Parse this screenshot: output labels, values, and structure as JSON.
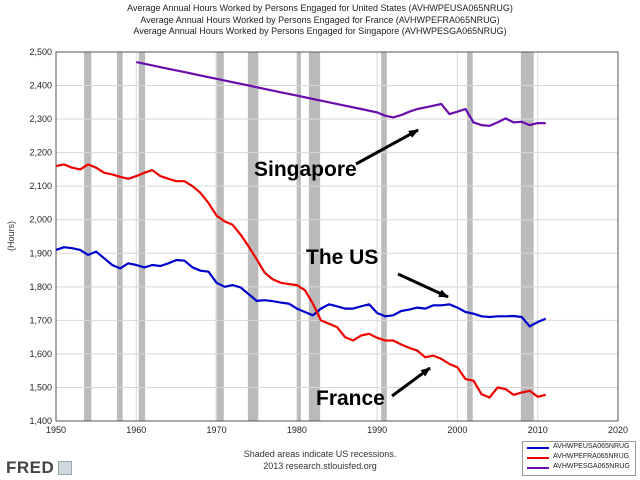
{
  "header": {
    "titles": [
      "Average Annual Hours Worked by Persons Engaged for United States (AVHWPEUSA065NRUG)",
      "Average Annual Hours Worked by Persons Engaged for France (AVHWPEFRA065NRUG)",
      "Average Annual Hours Worked by Persons Engaged for Singapore (AVHWPESGA065NRUG)"
    ]
  },
  "annotations": {
    "singapore": "Singapore",
    "us": "The US",
    "france": "France"
  },
  "footer": {
    "note": "Shaded areas indicate US recessions.",
    "source": "2013 research.stlouisfed.org",
    "brand": "FRED"
  },
  "colors": {
    "us": "#0000cc",
    "france": "#ee0000",
    "singapore": "#6a0dad",
    "recession": "#bbbbbb"
  },
  "chart_data": {
    "type": "line",
    "ylabel": "(Hours)",
    "xlim": [
      1950,
      2020
    ],
    "ylim": [
      1400,
      2500
    ],
    "x_ticks": [
      1950,
      1960,
      1970,
      1980,
      1990,
      2000,
      2010,
      2020
    ],
    "y_ticks": [
      "1,400",
      "1,500",
      "1,600",
      "1,700",
      "1,800",
      "1,900",
      "2,000",
      "2,100",
      "2,200",
      "2,300",
      "2,400",
      "2,500"
    ],
    "y_tick_values": [
      1400,
      1500,
      1600,
      1700,
      1800,
      1900,
      2000,
      2100,
      2200,
      2300,
      2400,
      2500
    ],
    "grid": true,
    "recessions": [
      [
        1953.5,
        1954.4
      ],
      [
        1957.6,
        1958.3
      ],
      [
        1960.3,
        1961.1
      ],
      [
        1969.9,
        1970.9
      ],
      [
        1973.9,
        1975.2
      ],
      [
        1980.0,
        1980.5
      ],
      [
        1981.5,
        1982.9
      ],
      [
        1990.5,
        1991.2
      ],
      [
        2001.2,
        2001.9
      ],
      [
        2007.9,
        2009.5
      ]
    ],
    "legend_placement": "bottom-right",
    "series": [
      {
        "name": "AVHWPEUSA065NRUG",
        "color": "#0000cc",
        "x": [
          1950,
          1951,
          1952,
          1953,
          1954,
          1955,
          1956,
          1957,
          1958,
          1959,
          1960,
          1961,
          1962,
          1963,
          1964,
          1965,
          1966,
          1967,
          1968,
          1969,
          1970,
          1971,
          1972,
          1973,
          1974,
          1975,
          1976,
          1977,
          1978,
          1979,
          1980,
          1981,
          1982,
          1983,
          1984,
          1985,
          1986,
          1987,
          1988,
          1989,
          1990,
          1991,
          1992,
          1993,
          1994,
          1995,
          1996,
          1997,
          1998,
          1999,
          2000,
          2001,
          2002,
          2003,
          2004,
          2005,
          2006,
          2007,
          2008,
          2009,
          2010,
          2011
        ],
        "y": [
          1910,
          1918,
          1915,
          1910,
          1895,
          1905,
          1885,
          1865,
          1855,
          1870,
          1865,
          1858,
          1865,
          1862,
          1870,
          1880,
          1878,
          1858,
          1848,
          1845,
          1812,
          1800,
          1805,
          1798,
          1778,
          1758,
          1760,
          1757,
          1753,
          1750,
          1735,
          1725,
          1715,
          1735,
          1748,
          1742,
          1735,
          1735,
          1742,
          1748,
          1722,
          1712,
          1715,
          1728,
          1732,
          1738,
          1735,
          1745,
          1745,
          1748,
          1738,
          1725,
          1720,
          1712,
          1710,
          1712,
          1712,
          1713,
          1710,
          1682,
          1695,
          1705
        ]
      },
      {
        "name": "AVHWPEFRA065NRUG",
        "color": "#ee0000",
        "x": [
          1950,
          1951,
          1952,
          1953,
          1954,
          1955,
          1956,
          1957,
          1958,
          1959,
          1960,
          1961,
          1962,
          1963,
          1964,
          1965,
          1966,
          1967,
          1968,
          1969,
          1970,
          1971,
          1972,
          1973,
          1974,
          1975,
          1976,
          1977,
          1978,
          1979,
          1980,
          1981,
          1982,
          1983,
          1984,
          1985,
          1986,
          1987,
          1988,
          1989,
          1990,
          1991,
          1992,
          1993,
          1994,
          1995,
          1996,
          1997,
          1998,
          1999,
          2000,
          2001,
          2002,
          2003,
          2004,
          2005,
          2006,
          2007,
          2008,
          2009,
          2010,
          2011
        ],
        "y": [
          2160,
          2165,
          2155,
          2150,
          2165,
          2155,
          2140,
          2135,
          2128,
          2122,
          2130,
          2140,
          2148,
          2130,
          2122,
          2115,
          2115,
          2100,
          2080,
          2050,
          2012,
          1995,
          1985,
          1955,
          1920,
          1882,
          1842,
          1822,
          1812,
          1808,
          1805,
          1790,
          1750,
          1700,
          1690,
          1680,
          1650,
          1640,
          1655,
          1660,
          1648,
          1640,
          1640,
          1628,
          1618,
          1610,
          1590,
          1595,
          1585,
          1570,
          1560,
          1525,
          1520,
          1480,
          1470,
          1500,
          1495,
          1478,
          1485,
          1490,
          1472,
          1478
        ]
      },
      {
        "name": "AVHWPESGA065NRUG",
        "color": "#6a0dad",
        "x": [
          1960,
          1962,
          1964,
          1966,
          1968,
          1970,
          1972,
          1974,
          1976,
          1978,
          1980,
          1982,
          1984,
          1986,
          1988,
          1990,
          1991,
          1992,
          1993,
          1994,
          1995,
          1996,
          1997,
          1998,
          1999,
          2000,
          2001,
          2002,
          2003,
          2004,
          2005,
          2006,
          2007,
          2008,
          2009,
          2010,
          2011
        ],
        "y": [
          2470,
          2460,
          2450,
          2440,
          2430,
          2420,
          2410,
          2400,
          2390,
          2380,
          2370,
          2360,
          2350,
          2340,
          2330,
          2320,
          2310,
          2305,
          2312,
          2322,
          2330,
          2335,
          2340,
          2345,
          2315,
          2322,
          2330,
          2290,
          2282,
          2280,
          2290,
          2302,
          2290,
          2292,
          2282,
          2288,
          2288
        ]
      }
    ]
  }
}
